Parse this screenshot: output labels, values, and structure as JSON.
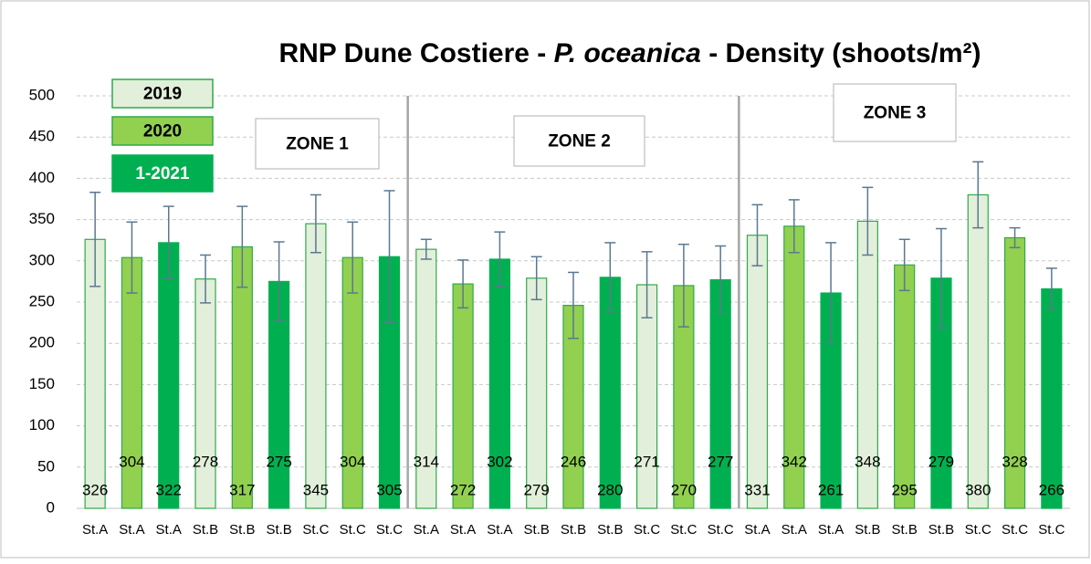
{
  "chart_data": {
    "type": "bar",
    "title": [
      "RNP Dune Costiere - ",
      "P. oceanica",
      " - Density (shoots/m²)"
    ],
    "categories": [
      "St.A",
      "St.A",
      "St.A",
      "St.B",
      "St.B",
      "St.B",
      "St.C",
      "St.C",
      "St.C",
      "St.A",
      "St.A",
      "St.A",
      "St.B",
      "St.B",
      "St.B",
      "St.C",
      "St.C",
      "St.C",
      "St.A",
      "St.A",
      "St.A",
      "St.B",
      "St.B",
      "St.B",
      "St.C",
      "St.C",
      "St.C"
    ],
    "series": [
      {
        "name": "2019",
        "color": "#e2efda",
        "border": "#2eaa4a",
        "values": [
          326,
          null,
          null,
          278,
          null,
          null,
          345,
          null,
          null,
          314,
          null,
          null,
          279,
          null,
          null,
          271,
          null,
          null,
          331,
          null,
          null,
          348,
          null,
          null,
          380,
          null,
          null
        ],
        "errors": [
          57,
          null,
          null,
          29,
          null,
          null,
          35,
          null,
          null,
          12,
          null,
          null,
          26,
          null,
          null,
          40,
          null,
          null,
          37,
          null,
          null,
          41,
          null,
          null,
          40,
          null,
          null
        ]
      },
      {
        "name": "2020",
        "color": "#92d050",
        "border": "#2eaa4a",
        "values": [
          null,
          304,
          null,
          null,
          317,
          null,
          null,
          304,
          null,
          null,
          272,
          null,
          null,
          246,
          null,
          null,
          270,
          null,
          null,
          342,
          null,
          null,
          295,
          null,
          null,
          328,
          null
        ],
        "errors": [
          null,
          43,
          null,
          null,
          49,
          null,
          null,
          43,
          null,
          null,
          29,
          null,
          null,
          40,
          null,
          null,
          50,
          null,
          null,
          32,
          null,
          null,
          31,
          null,
          null,
          12,
          null
        ]
      },
      {
        "name": "1-2021",
        "color": "#00b050",
        "border": "#00b050",
        "values": [
          null,
          null,
          322,
          null,
          null,
          275,
          null,
          null,
          305,
          null,
          null,
          302,
          null,
          null,
          280,
          null,
          null,
          277,
          null,
          null,
          261,
          null,
          null,
          279,
          null,
          null,
          266
        ],
        "errors": [
          null,
          null,
          44,
          null,
          null,
          48,
          null,
          null,
          80,
          null,
          null,
          33,
          null,
          null,
          42,
          null,
          null,
          41,
          null,
          null,
          61,
          null,
          null,
          60,
          null,
          null,
          25
        ]
      }
    ],
    "annotations": [
      "ZONE 1",
      "ZONE 2",
      "ZONE 3"
    ],
    "ylim": [
      0,
      500
    ],
    "yticks": [
      0,
      50,
      100,
      150,
      200,
      250,
      300,
      350,
      400,
      450,
      500
    ],
    "grid": true
  }
}
